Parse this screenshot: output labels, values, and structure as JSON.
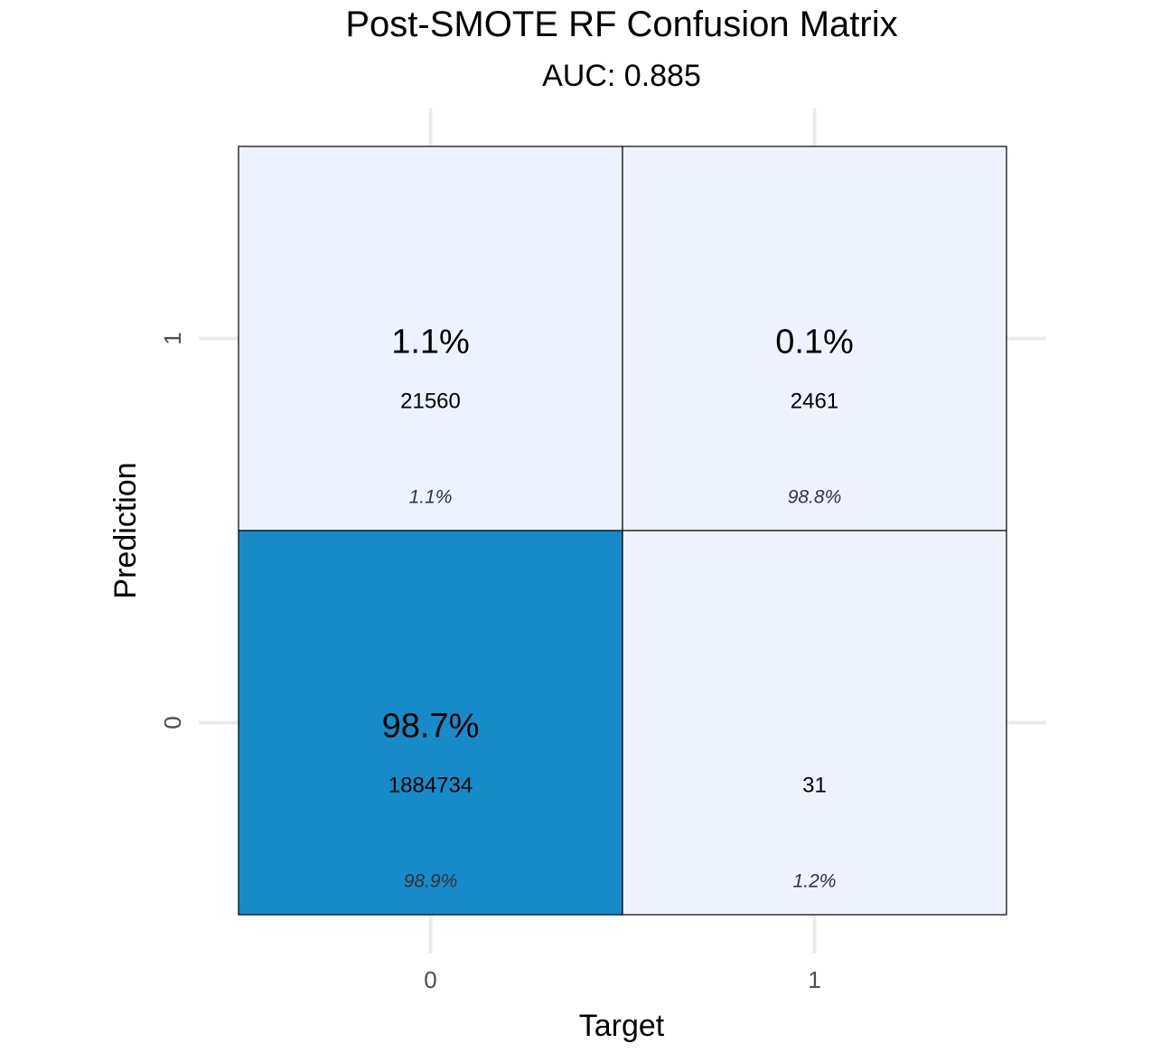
{
  "chart_data": {
    "type": "heatmap",
    "title": "Post-SMOTE RF Confusion Matrix",
    "subtitle": "AUC: 0.885",
    "xlabel": "Target",
    "ylabel": "Prediction",
    "x_categories": [
      "0",
      "1"
    ],
    "y_categories": [
      "0",
      "1"
    ],
    "cells": [
      {
        "target": "0",
        "prediction": "1",
        "percent": "1.1%",
        "count": "21560",
        "column_percent": "1.1%",
        "fill": "#edf3fe"
      },
      {
        "target": "1",
        "prediction": "1",
        "percent": "0.1%",
        "count": "2461",
        "column_percent": "98.8%",
        "fill": "#eef3fe"
      },
      {
        "target": "0",
        "prediction": "0",
        "percent": "98.7%",
        "count": "1884734",
        "column_percent": "98.9%",
        "fill": "#178bc8"
      },
      {
        "target": "1",
        "prediction": "0",
        "percent": "",
        "count": "31",
        "column_percent": "1.2%",
        "fill": "#eef3fe"
      }
    ],
    "grid": true
  }
}
